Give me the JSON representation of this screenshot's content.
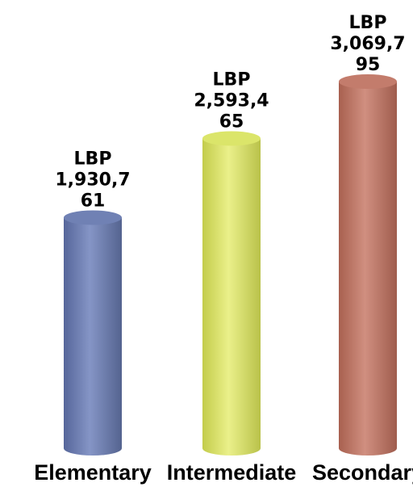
{
  "chart_data": {
    "type": "bar",
    "categories": [
      "Elementary",
      "Intermediate",
      "Secondary"
    ],
    "values": [
      1930761,
      2593465,
      3069795
    ],
    "data_labels": [
      [
        "LBP",
        "1,930,7",
        "61"
      ],
      [
        "LBP",
        "2,593,4",
        "65"
      ],
      [
        "LBP",
        "3,069,7",
        "95"
      ]
    ],
    "colors": [
      "#7081b4",
      "#dbe56a",
      "#c37c6c"
    ],
    "style": "cylinder",
    "grid": false,
    "legend": "none"
  }
}
